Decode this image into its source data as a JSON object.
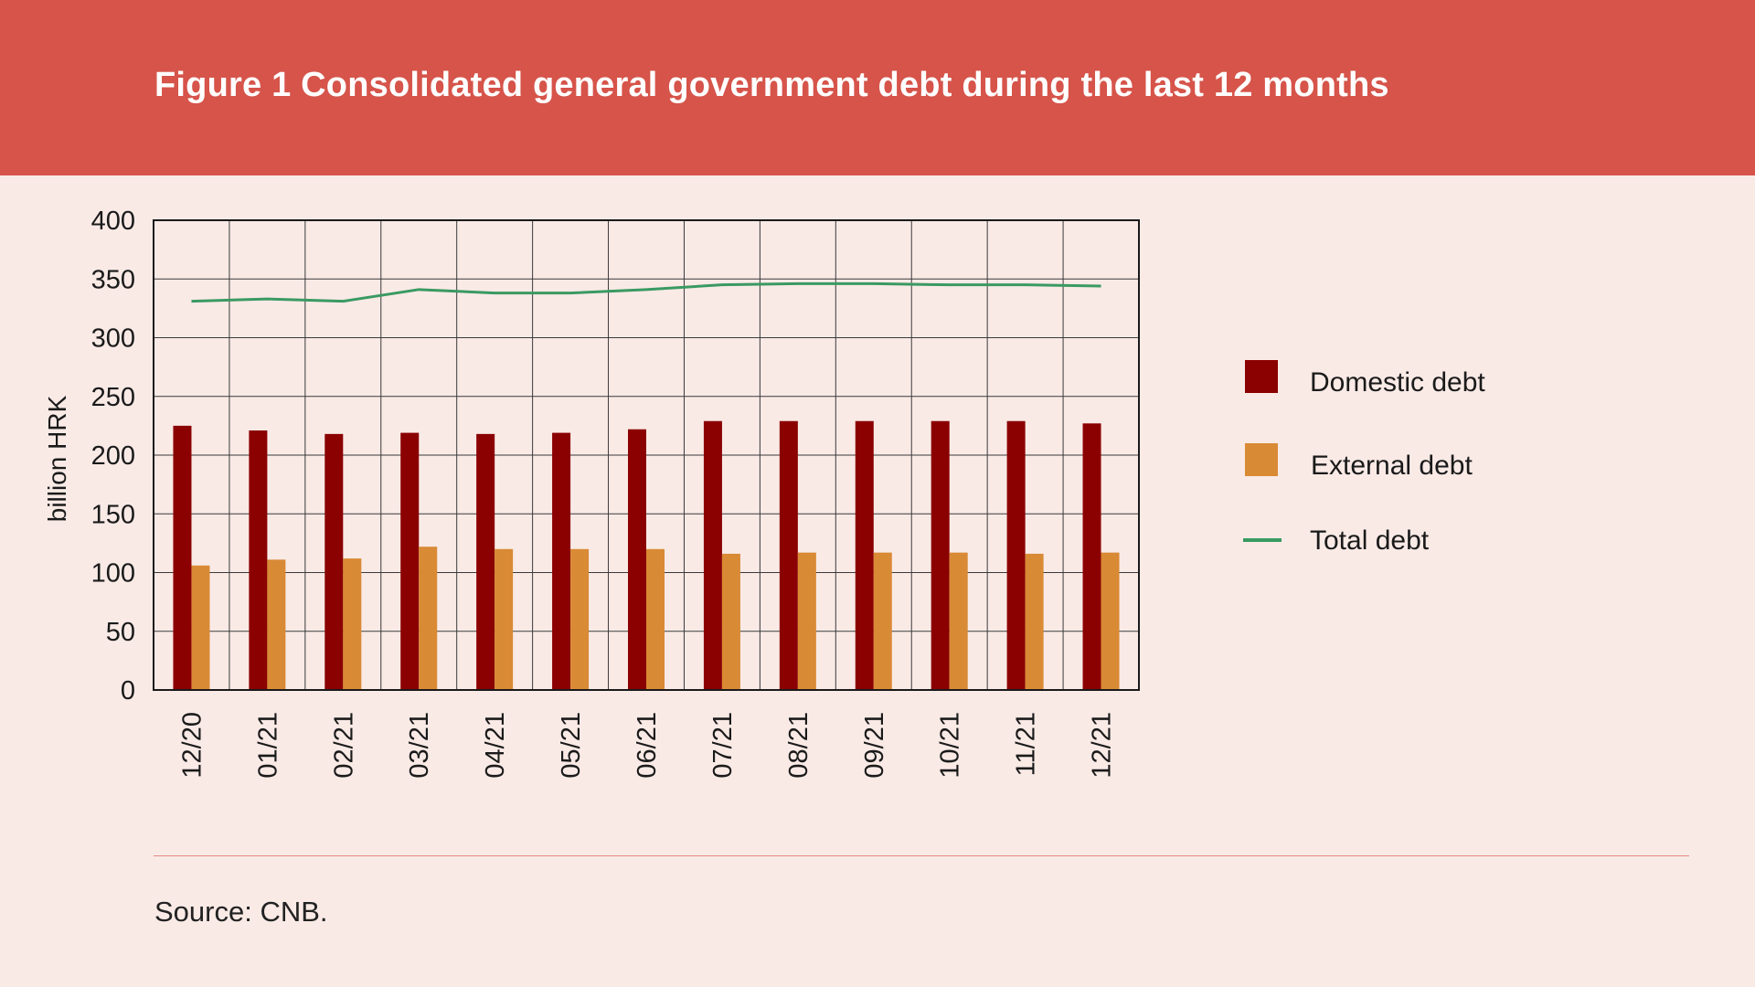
{
  "header": {
    "title": "Figure 1 Consolidated general government debt during the last 12 months"
  },
  "footer": {
    "source": "Source: CNB."
  },
  "colors": {
    "header_bg": "#d6544a",
    "page_bg": "#f9eae6",
    "domestic": "#8b0000",
    "external": "#d98a35",
    "total": "#3a9a62",
    "grid": "#3a3a3a"
  },
  "chart_data": {
    "type": "bar",
    "ylabel": "billion HRK",
    "xlabel": "",
    "ylim": [
      0,
      400
    ],
    "yticks": [
      0,
      50,
      100,
      150,
      200,
      250,
      300,
      350,
      400
    ],
    "grid": true,
    "legend_position": "right",
    "categories": [
      "12/20",
      "01/21",
      "02/21",
      "03/21",
      "04/21",
      "05/21",
      "06/21",
      "07/21",
      "08/21",
      "09/21",
      "10/21",
      "11/21",
      "12/21"
    ],
    "series": [
      {
        "name": "Domestic debt",
        "type": "bar",
        "values": [
          225,
          221,
          218,
          219,
          218,
          219,
          222,
          229,
          229,
          229,
          229,
          229,
          227
        ]
      },
      {
        "name": "External debt",
        "type": "bar",
        "values": [
          106,
          111,
          112,
          122,
          120,
          120,
          120,
          116,
          117,
          117,
          117,
          116,
          117
        ]
      },
      {
        "name": "Total debt",
        "type": "line",
        "values": [
          331,
          333,
          331,
          341,
          338,
          338,
          341,
          345,
          346,
          346,
          345,
          345,
          344
        ]
      }
    ]
  }
}
